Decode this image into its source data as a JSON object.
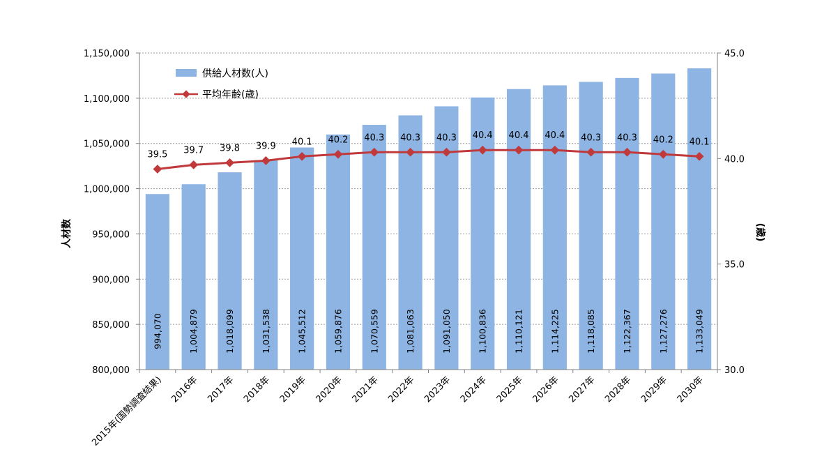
{
  "chart_data": {
    "type": "bar",
    "categories": [
      "2015年(国勢調査結果)",
      "2016年",
      "2017年",
      "2018年",
      "2019年",
      "2020年",
      "2021年",
      "2022年",
      "2023年",
      "2024年",
      "2025年",
      "2026年",
      "2027年",
      "2028年",
      "2029年",
      "2030年"
    ],
    "series": [
      {
        "name": "供給人材数(人)",
        "type": "bar",
        "axis": "left",
        "color": "#8eb4e3",
        "values": [
          994070,
          1004879,
          1018099,
          1031538,
          1045512,
          1059876,
          1070559,
          1081063,
          1091050,
          1100836,
          1110121,
          1114225,
          1118085,
          1122367,
          1127276,
          1133049
        ],
        "value_labels": [
          "994,070",
          "1,004,879",
          "1,018,099",
          "1,031,538",
          "1,045,512",
          "1,059,876",
          "1,070,559",
          "1,081,063",
          "1,091,050",
          "1,100,836",
          "1,110,121",
          "1,114,225",
          "1,118,085",
          "1,122,367",
          "1,127,276",
          "1,133,049"
        ]
      },
      {
        "name": "平均年齢(歳)",
        "type": "line",
        "axis": "right",
        "color": "#c0393b",
        "values": [
          39.5,
          39.7,
          39.8,
          39.9,
          40.1,
          40.2,
          40.3,
          40.3,
          40.3,
          40.4,
          40.4,
          40.4,
          40.3,
          40.3,
          40.2,
          40.1
        ],
        "value_labels": [
          "39.5",
          "39.7",
          "39.8",
          "39.9",
          "40.1",
          "40.2",
          "40.3",
          "40.3",
          "40.3",
          "40.4",
          "40.4",
          "40.4",
          "40.3",
          "40.3",
          "40.2",
          "40.1"
        ]
      }
    ],
    "ylabel": "人材数",
    "y2label": "(歳)",
    "ylim": [
      800000,
      1150000
    ],
    "y2lim": [
      30.0,
      45.0
    ],
    "yticks": [
      "800,000",
      "850,000",
      "900,000",
      "950,000",
      "1,000,000",
      "1,050,000",
      "1,100,000",
      "1,150,000"
    ],
    "y2ticks": [
      "30.0",
      "35.0",
      "40.0",
      "45.0"
    ],
    "grid": true,
    "legend": "top-left"
  }
}
